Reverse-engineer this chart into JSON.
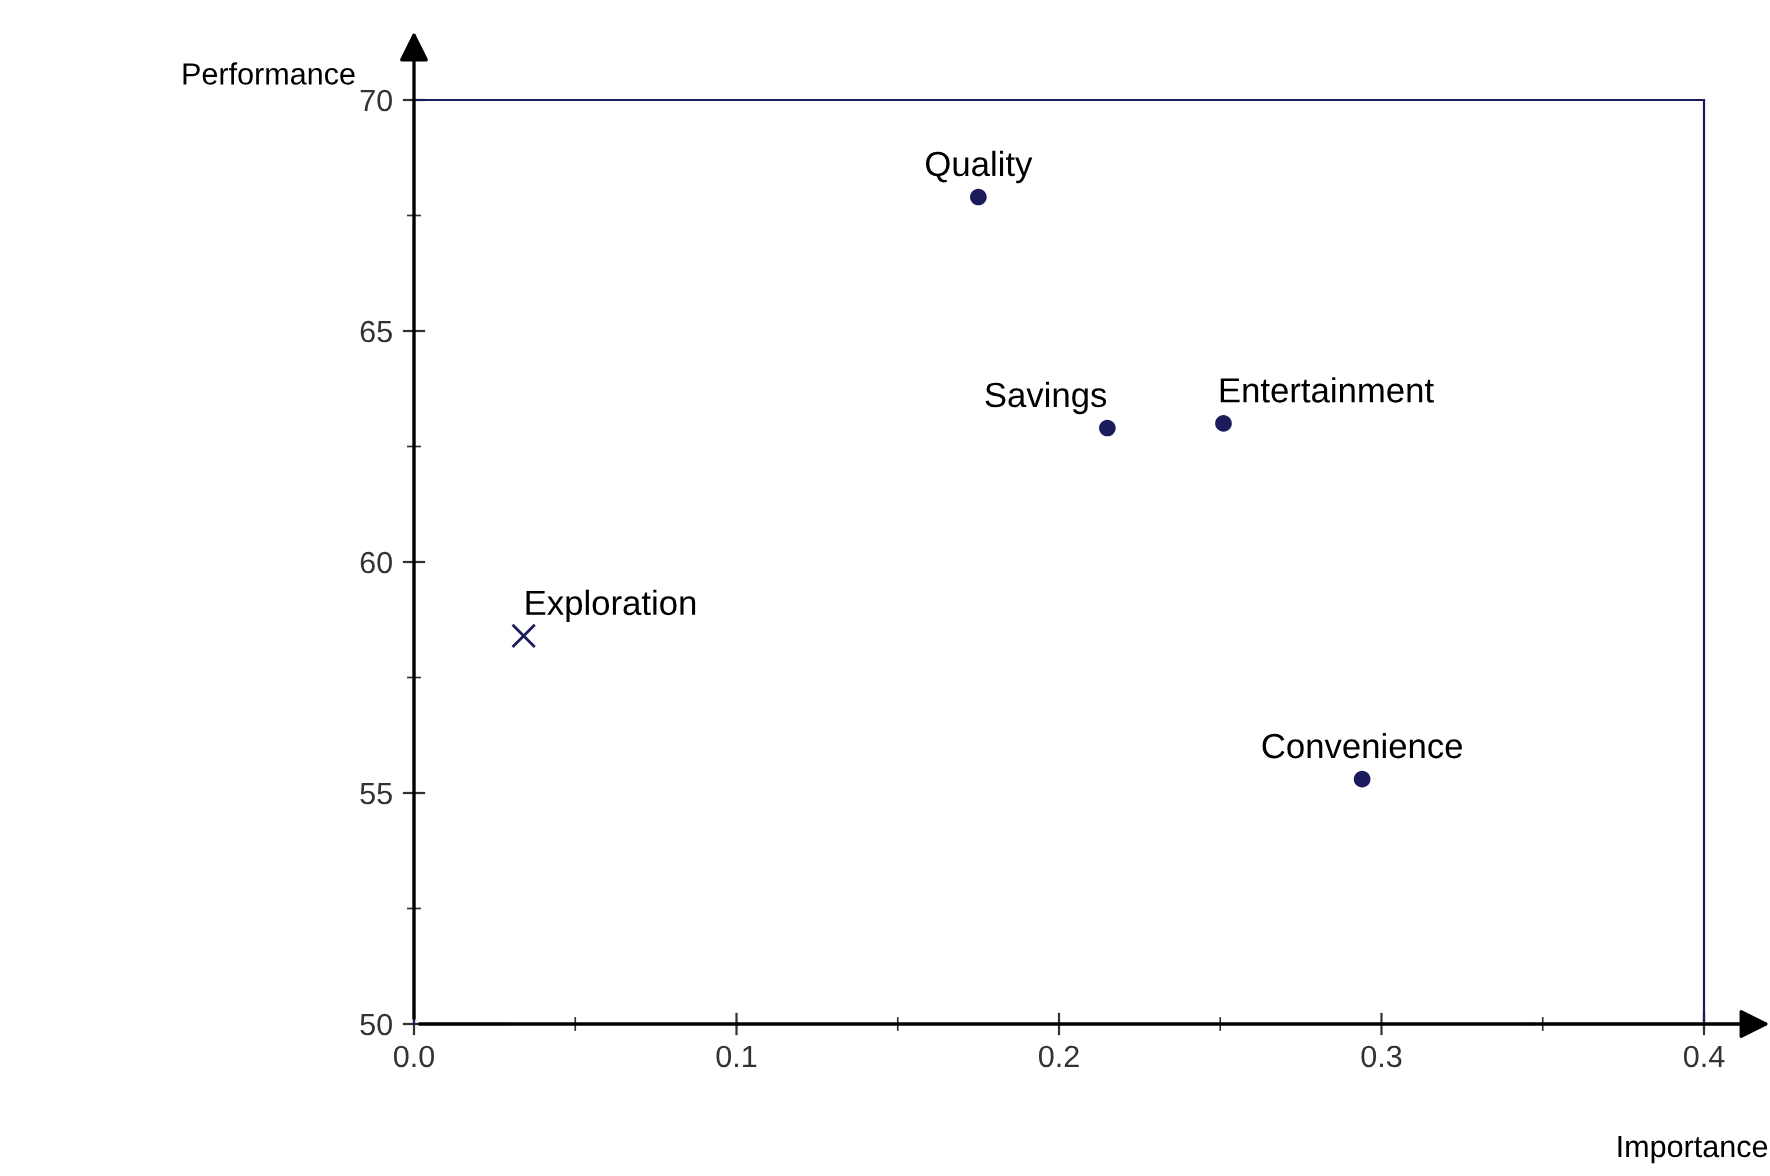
{
  "chart_data": {
    "type": "scatter",
    "xlabel": "Importance",
    "ylabel": "Performance",
    "xlim": [
      0,
      0.4
    ],
    "ylim": [
      50,
      70
    ],
    "xticks": [
      {
        "value": 0,
        "label": "0.0"
      },
      {
        "value": 0.1,
        "label": "0.1"
      },
      {
        "value": 0.2,
        "label": "0.2"
      },
      {
        "value": 0.3,
        "label": "0.3"
      },
      {
        "value": 0.4,
        "label": "0.4"
      }
    ],
    "yticks": [
      50,
      55,
      60,
      65,
      70
    ],
    "grid": false,
    "legend": false,
    "series": [
      {
        "color": "#1c1c5c",
        "marker": "circle",
        "x": [
          0.175,
          0.215,
          0.251,
          0.294
        ],
        "values": [
          67.9,
          62.9,
          63.0,
          55.3
        ]
      },
      {
        "color": "#1c1c5c",
        "marker": "cross",
        "x": [
          0.034
        ],
        "values": [
          58.4
        ]
      }
    ],
    "annotations": [
      {
        "text": "Quality",
        "x": 0.175,
        "y": 67.9
      },
      {
        "text": "Savings",
        "x": 0.215,
        "y": 62.9
      },
      {
        "text": "Entertainment",
        "x": 0.251,
        "y": 63.0
      },
      {
        "text": "Convenience",
        "x": 0.294,
        "y": 55.3
      },
      {
        "text": "Exploration",
        "x": 0.034,
        "y": 58.4
      }
    ]
  }
}
